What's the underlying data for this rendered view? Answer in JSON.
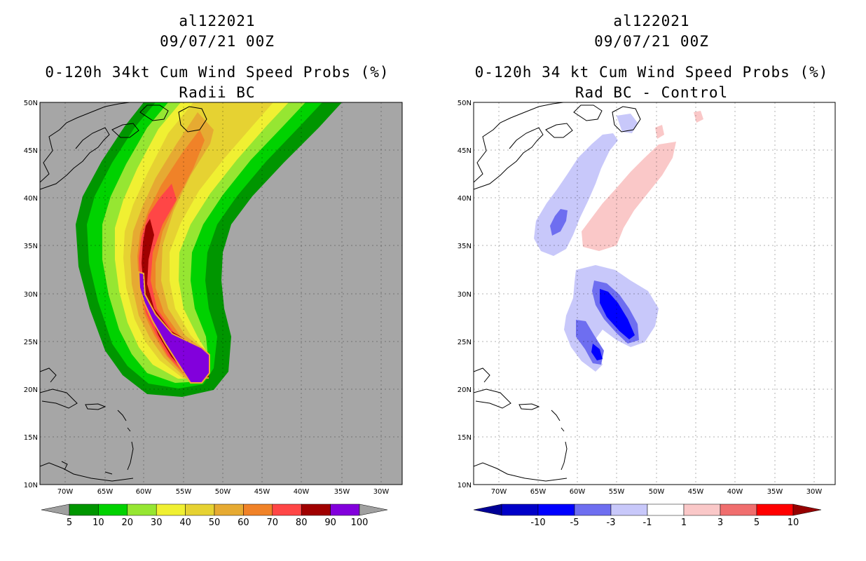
{
  "left": {
    "storm": "al122021",
    "date": "09/07/21 00Z",
    "title": "0-120h 34kt Cum Wind Speed Probs (%)",
    "subtitle": "Radii BC",
    "colorbar": {
      "labels": [
        "5",
        "10",
        "20",
        "30",
        "40",
        "50",
        "60",
        "70",
        "80",
        "90",
        "100"
      ],
      "colors": [
        "#009600",
        "#00d200",
        "#96e632",
        "#f0f032",
        "#e6d232",
        "#e6aa32",
        "#f08228",
        "#ff4646",
        "#a00000",
        "#8200dc"
      ],
      "ends": [
        "#a0a0a0",
        "#a0a0a0"
      ]
    }
  },
  "right": {
    "storm": "al122021",
    "date": "09/07/21 00Z",
    "title": "0-120h 34 kt Cum Wind Speed Probs (%)",
    "subtitle": "Rad BC - Control",
    "colorbar": {
      "labels": [
        "-10",
        "-5",
        "-3",
        "-1",
        "1",
        "3",
        "5",
        "10"
      ],
      "colors": [
        "#0000c8",
        "#0000ff",
        "#6e6ef0",
        "#c8c8fa",
        "#ffffff",
        "#fac8c8",
        "#f06e6e",
        "#ff0000"
      ],
      "ends": [
        "#000096",
        "#960000"
      ]
    }
  },
  "axes": {
    "lat_labels": [
      "50N",
      "45N",
      "40N",
      "35N",
      "30N",
      "25N",
      "20N",
      "15N",
      "10N"
    ],
    "lon_labels": [
      "70W",
      "65W",
      "60W",
      "55W",
      "50W",
      "45W",
      "40W",
      "35W",
      "30W"
    ]
  }
}
